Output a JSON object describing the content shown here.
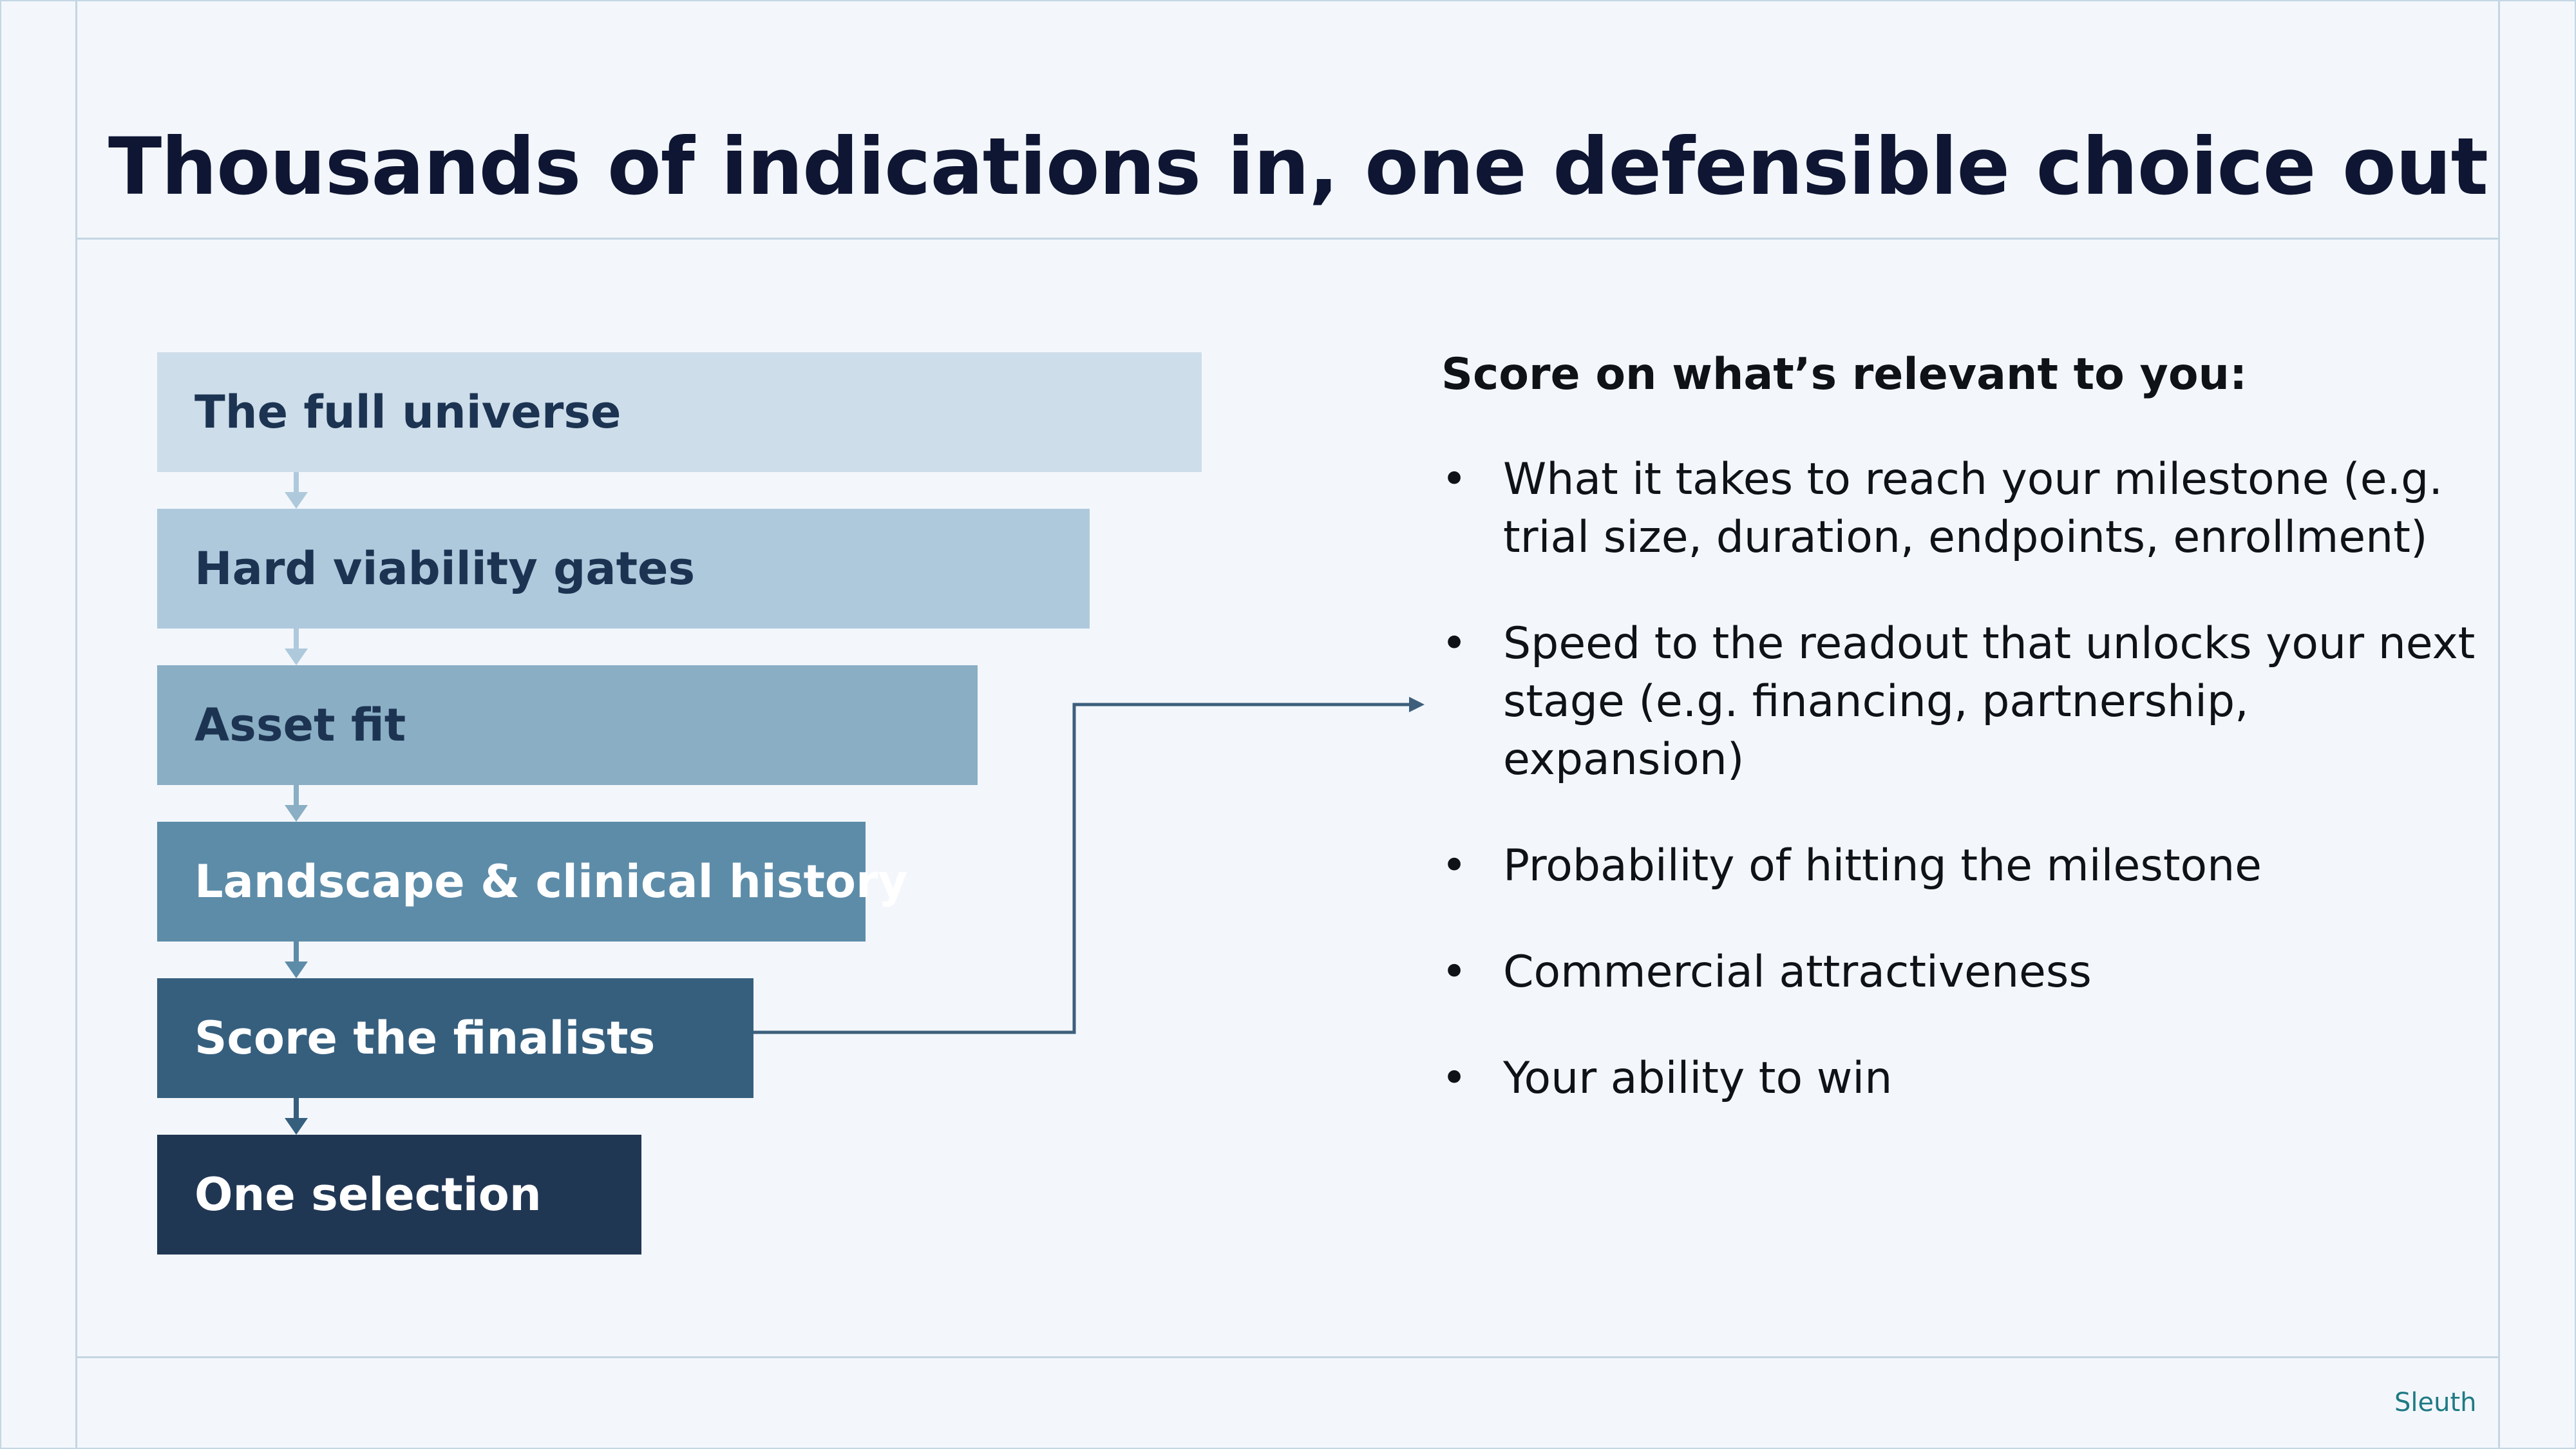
{
  "title": "Thousands of indications in, one defensible choice out",
  "funnel": {
    "steps": [
      {
        "label": "The full universe",
        "color": "#cddde9",
        "text_color": "#1c3452"
      },
      {
        "label": "Hard viability gates",
        "color": "#afc9dc",
        "text_color": "#1c3452"
      },
      {
        "label": "Asset fit",
        "color": "#8aaec4",
        "text_color": "#1c3452"
      },
      {
        "label": "Landscape & clinical history",
        "color": "#5d8ca9",
        "text_color": "#ffffff"
      },
      {
        "label": "Score the finalists",
        "color": "#365f7e",
        "text_color": "#ffffff"
      },
      {
        "label": "One selection",
        "color": "#203754",
        "text_color": "#ffffff"
      }
    ]
  },
  "criteria": {
    "heading": "Score on what’s relevant to you:",
    "bullet": "•",
    "items": [
      "What it takes to reach your milestone (e.g. trial size, duration, endpoints, enrollment)",
      "Speed to the readout that unlocks your next stage (e.g. financing, partnership, expansion)",
      "Probability of hitting the milestone",
      "Commercial attractiveness",
      "Your ability to win"
    ]
  },
  "footer": {
    "brand": "Sleuth"
  },
  "colors": {
    "background": "#f3f7fb",
    "frame": "#c4d6e3",
    "connector_line": "#3d5f7c",
    "brand": "#1f7a85"
  }
}
